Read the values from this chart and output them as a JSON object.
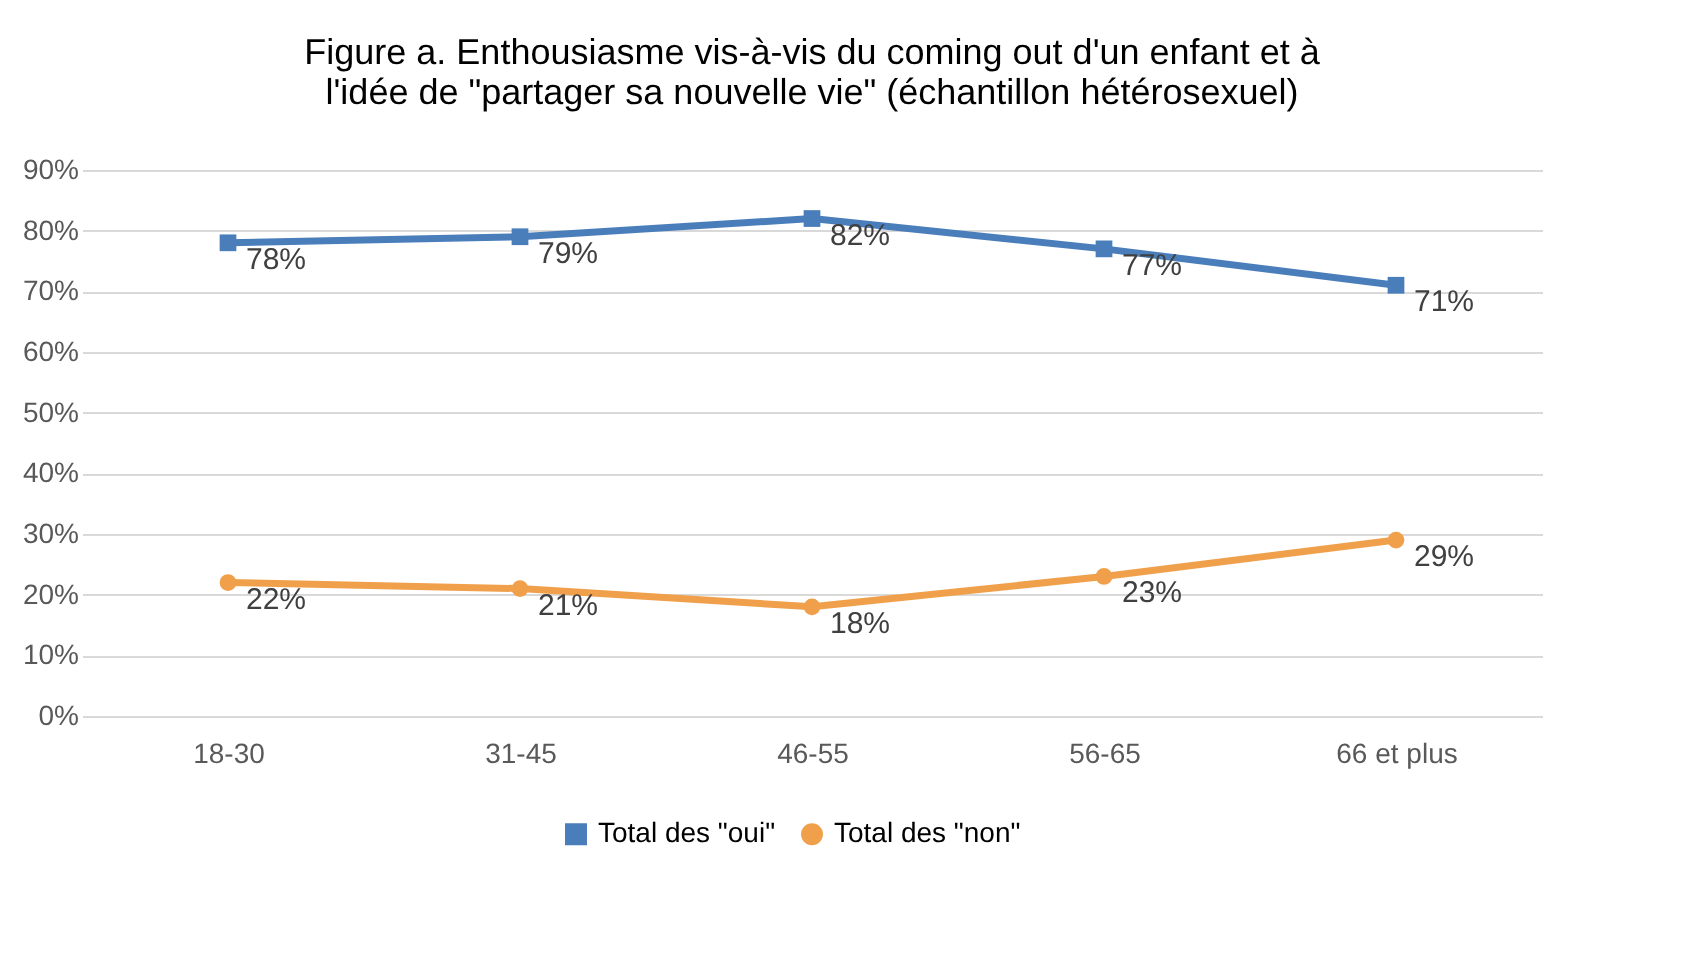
{
  "chart_data": {
    "type": "line",
    "title": "Figure a. Enthousiasme vis-à-vis du coming out d'un enfant et à\nl'idée de \"partager sa nouvelle vie\" (échantillon hétérosexuel)",
    "categories": [
      "18-30",
      "31-45",
      "46-55",
      "56-65",
      "66 et plus"
    ],
    "series": [
      {
        "name": "Total des \"oui\"",
        "color": "#4a7ebb",
        "marker": "square",
        "values": [
          78,
          79,
          82,
          77,
          71
        ],
        "value_labels": [
          "78%",
          "79%",
          "82%",
          "77%",
          "71%"
        ]
      },
      {
        "name": "Total des \"non\"",
        "color": "#f0a04b",
        "marker": "circle",
        "values": [
          22,
          21,
          18,
          23,
          29
        ],
        "value_labels": [
          "22%",
          "21%",
          "18%",
          "23%",
          "29%"
        ]
      }
    ],
    "ylim": [
      0,
      90
    ],
    "yticks": [
      {
        "value": 0,
        "label": "0%"
      },
      {
        "value": 10,
        "label": "10%"
      },
      {
        "value": 20,
        "label": "20%"
      },
      {
        "value": 30,
        "label": "30%"
      },
      {
        "value": 40,
        "label": "40%"
      },
      {
        "value": 50,
        "label": "50%"
      },
      {
        "value": 60,
        "label": "60%"
      },
      {
        "value": 70,
        "label": "70%"
      },
      {
        "value": 80,
        "label": "80%"
      },
      {
        "value": 90,
        "label": "90%"
      }
    ],
    "grid": "y",
    "legend": "bottom",
    "line_style": "solid"
  }
}
